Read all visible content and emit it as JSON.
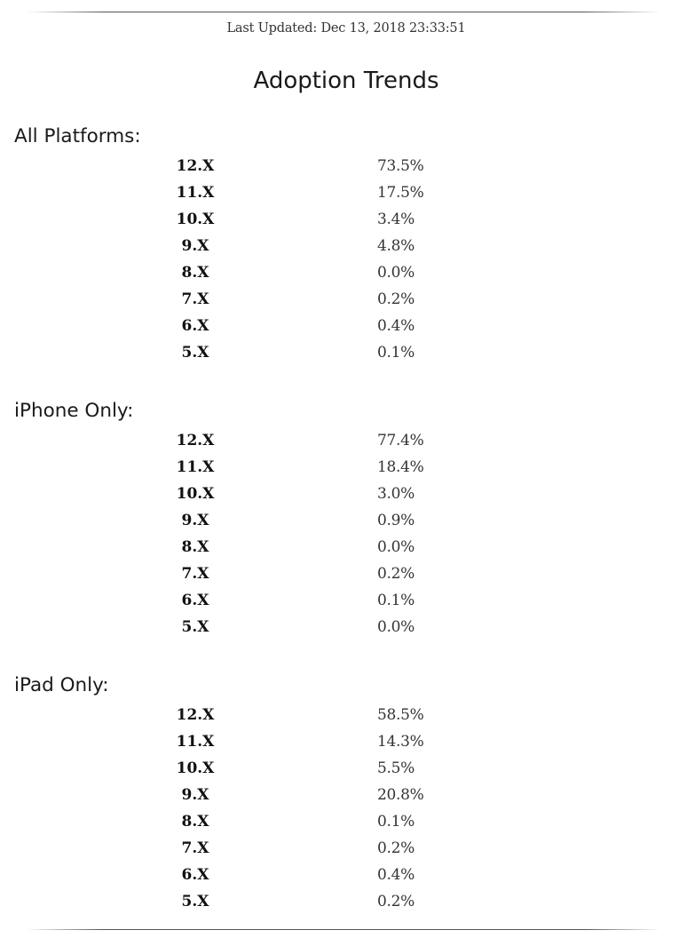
{
  "header": {
    "last_updated": "Last Updated: Dec 13, 2018 23:33:51",
    "title": "Adoption Trends"
  },
  "sections": [
    {
      "title": "All Platforms:",
      "rows": [
        {
          "version": "12.X",
          "percent": "73.5%"
        },
        {
          "version": "11.X",
          "percent": "17.5%"
        },
        {
          "version": "10.X",
          "percent": "3.4%"
        },
        {
          "version": "9.X",
          "percent": "4.8%"
        },
        {
          "version": "8.X",
          "percent": "0.0%"
        },
        {
          "version": "7.X",
          "percent": "0.2%"
        },
        {
          "version": "6.X",
          "percent": "0.4%"
        },
        {
          "version": "5.X",
          "percent": "0.1%"
        }
      ]
    },
    {
      "title": "iPhone Only:",
      "rows": [
        {
          "version": "12.X",
          "percent": "77.4%"
        },
        {
          "version": "11.X",
          "percent": "18.4%"
        },
        {
          "version": "10.X",
          "percent": "3.0%"
        },
        {
          "version": "9.X",
          "percent": "0.9%"
        },
        {
          "version": "8.X",
          "percent": "0.0%"
        },
        {
          "version": "7.X",
          "percent": "0.2%"
        },
        {
          "version": "6.X",
          "percent": "0.1%"
        },
        {
          "version": "5.X",
          "percent": "0.0%"
        }
      ]
    },
    {
      "title": "iPad Only:",
      "rows": [
        {
          "version": "12.X",
          "percent": "58.5%"
        },
        {
          "version": "11.X",
          "percent": "14.3%"
        },
        {
          "version": "10.X",
          "percent": "5.5%"
        },
        {
          "version": "9.X",
          "percent": "20.8%"
        },
        {
          "version": "8.X",
          "percent": "0.1%"
        },
        {
          "version": "7.X",
          "percent": "0.2%"
        },
        {
          "version": "6.X",
          "percent": "0.4%"
        },
        {
          "version": "5.X",
          "percent": "0.2%"
        }
      ]
    }
  ]
}
